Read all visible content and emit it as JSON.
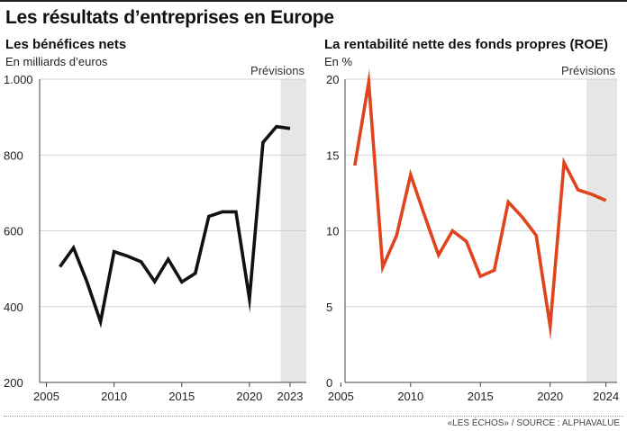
{
  "header": {
    "title": "Les résultats d’entreprises en Europe"
  },
  "footer": {
    "source": "«LES ÉCHOS» / SOURCE : ALPHAVALUE"
  },
  "chart_data": [
    {
      "type": "line",
      "title": "Les bénéfices nets",
      "ylabel": "En milliards d’euros",
      "forecast_label": "Prévisions",
      "forecast_range": [
        2022.3,
        2024.2
      ],
      "xlim": [
        2004.5,
        2024.2
      ],
      "ylim": [
        200,
        1000
      ],
      "x_ticks": [
        2005,
        2010,
        2015,
        2020,
        2023
      ],
      "x_tick_labels": [
        "2005",
        "2010",
        "2015",
        "2020",
        "2023"
      ],
      "y_ticks": [
        200,
        400,
        600,
        800,
        1000
      ],
      "y_tick_labels": [
        "200",
        "400",
        "600",
        "800",
        "1.000"
      ],
      "series": [
        {
          "name": "Bénéfices nets",
          "color": "#111111",
          "x": [
            2006,
            2007,
            2008,
            2009,
            2010,
            2011,
            2012,
            2013,
            2014,
            2015,
            2016,
            2017,
            2018,
            2019,
            2020,
            2021,
            2022,
            2023
          ],
          "values": [
            505,
            555,
            465,
            360,
            545,
            533,
            518,
            466,
            525,
            465,
            488,
            638,
            650,
            650,
            420,
            833,
            875,
            870
          ]
        }
      ]
    },
    {
      "type": "line",
      "title": "La rentabilité nette des fonds propres (ROE)",
      "ylabel": "En %",
      "forecast_label": "Prévisions",
      "forecast_range": [
        2022.6,
        2024.8
      ],
      "xlim": [
        2005.3,
        2024.8
      ],
      "ylim": [
        0,
        20
      ],
      "x_ticks": [
        2005,
        2010,
        2015,
        2020,
        2024
      ],
      "x_tick_labels": [
        "2005",
        "2010",
        "2015",
        "2020",
        "2024"
      ],
      "y_ticks": [
        0,
        5,
        10,
        15,
        20
      ],
      "y_tick_labels": [
        "0",
        "5",
        "10",
        "15",
        "20"
      ],
      "series": [
        {
          "name": "ROE",
          "color": "#e0441c",
          "x": [
            2006,
            2007,
            2008,
            2009,
            2010,
            2011,
            2012,
            2013,
            2014,
            2015,
            2016,
            2017,
            2018,
            2019,
            2020,
            2021,
            2022,
            2023,
            2024
          ],
          "values": [
            14.3,
            19.8,
            7.6,
            9.7,
            13.7,
            11.0,
            8.4,
            10.0,
            9.3,
            7.0,
            7.4,
            11.9,
            10.9,
            9.7,
            3.7,
            14.5,
            12.7,
            12.4,
            12.0
          ]
        }
      ]
    }
  ]
}
